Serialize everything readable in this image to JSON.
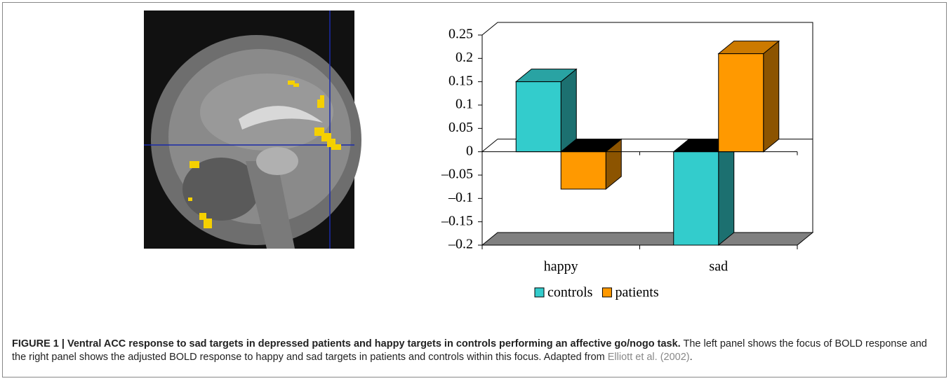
{
  "chart_data": {
    "type": "bar3d",
    "categories": [
      "happy",
      "sad"
    ],
    "series": [
      {
        "name": "controls",
        "color": "#33cccc",
        "values": [
          0.15,
          -0.2
        ]
      },
      {
        "name": "patients",
        "color": "#ff9900",
        "values": [
          -0.08,
          0.21
        ]
      }
    ],
    "ylim": [
      -0.2,
      0.25
    ],
    "yticks": [
      {
        "value": -0.2,
        "label": "–0.2"
      },
      {
        "value": -0.15,
        "label": "–0.15"
      },
      {
        "value": -0.1,
        "label": "–0.1"
      },
      {
        "value": -0.05,
        "label": "–0.05"
      },
      0,
      0.05,
      0.1,
      0.15,
      0.2,
      0.25
    ],
    "legend": "bottom"
  },
  "caption": {
    "label": "FIGURE 1 |",
    "title": "Ventral ACC response to sad targets in depressed patients and happy targets in controls performing an affective go/nogo task.",
    "text": "The left panel shows the focus of BOLD response and the right panel shows the adjusted BOLD response to happy and sad targets in patients and controls within this focus. Adapted from",
    "citation": "Elliott et al. (2002)",
    "end": "."
  }
}
